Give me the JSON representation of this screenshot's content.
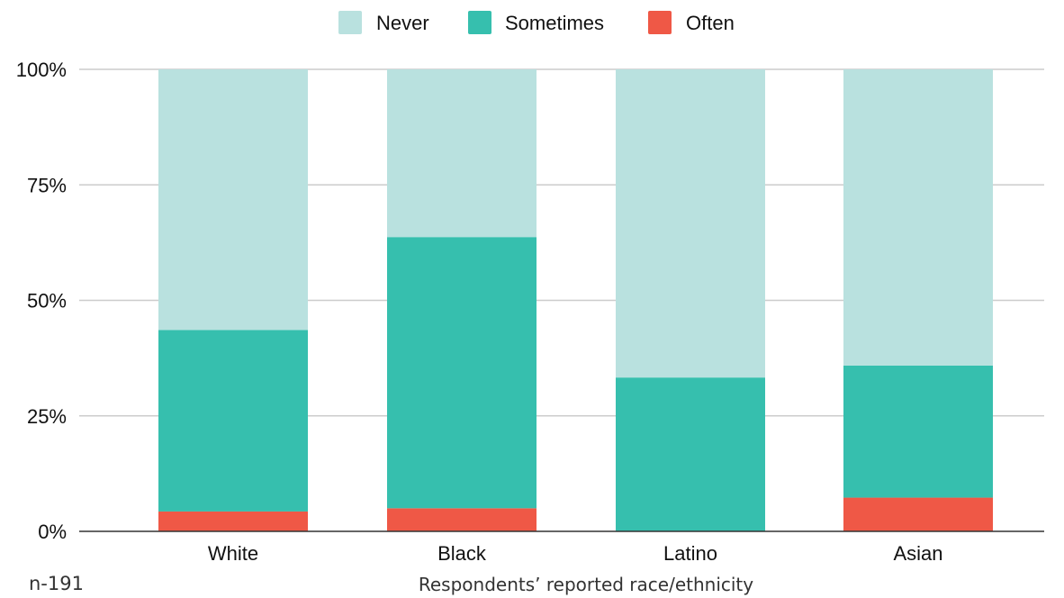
{
  "chart_data": {
    "type": "bar",
    "stacked": true,
    "categories": [
      "White",
      "Black",
      "Latino",
      "Asian"
    ],
    "series": [
      {
        "name": "Often",
        "values": [
          4.3,
          5.0,
          0,
          7.3
        ]
      },
      {
        "name": "Sometimes",
        "values": [
          39.3,
          58.7,
          33.3,
          28.6
        ]
      },
      {
        "name": "Never",
        "values": [
          56.4,
          36.3,
          66.7,
          64.1
        ]
      }
    ],
    "legend": [
      "Never",
      "Sometimes",
      "Often"
    ],
    "y_ticks": [
      "0%",
      "25%",
      "50%",
      "75%",
      "100%"
    ],
    "ylim": [
      0,
      100
    ],
    "xlabel": "Respondents’ reported race/ethnicity",
    "ylabel": "",
    "note": "n-191",
    "legend_position": "top-center",
    "grid": true
  },
  "colors": {
    "Never": "#b9e1df",
    "Sometimes": "#36bfae",
    "Often": "#ef5846",
    "grid": "#cccccc",
    "axis": "#333333",
    "text": "#111111"
  }
}
